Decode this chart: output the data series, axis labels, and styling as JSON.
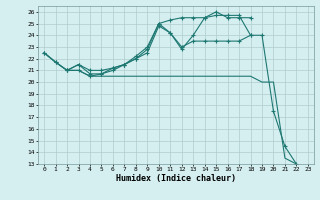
{
  "xlabel": "Humidex (Indice chaleur)",
  "xlim": [
    -0.5,
    23.5
  ],
  "ylim": [
    13,
    26.5
  ],
  "yticks": [
    13,
    14,
    15,
    16,
    17,
    18,
    19,
    20,
    21,
    22,
    23,
    24,
    25,
    26
  ],
  "xticks": [
    0,
    1,
    2,
    3,
    4,
    5,
    6,
    7,
    8,
    9,
    10,
    11,
    12,
    13,
    14,
    15,
    16,
    17,
    18,
    19,
    20,
    21,
    22,
    23
  ],
  "bg_color": "#d5eef0",
  "grid_color": "#b0cccc",
  "line_color": "#1e7872",
  "line1_x": [
    0,
    1,
    2,
    3,
    4,
    5,
    6,
    7,
    8,
    9,
    10,
    11,
    12,
    13,
    14,
    15,
    16,
    17,
    18,
    19,
    20,
    21,
    22
  ],
  "line1_y": [
    22.5,
    21.7,
    21.0,
    21.0,
    20.5,
    20.5,
    20.5,
    20.5,
    20.5,
    20.5,
    20.5,
    20.5,
    20.5,
    20.5,
    20.5,
    20.5,
    20.5,
    20.5,
    20.5,
    20.0,
    20.0,
    13.5,
    13.0
  ],
  "line2_x": [
    0,
    1,
    2,
    3,
    4,
    5,
    6,
    7,
    8,
    9,
    10,
    11,
    12,
    13,
    14,
    15,
    16,
    17,
    18,
    19,
    20,
    21,
    22
  ],
  "line2_y": [
    22.5,
    21.7,
    21.0,
    21.5,
    20.7,
    20.7,
    21.0,
    21.5,
    22.0,
    22.5,
    24.8,
    24.2,
    23.0,
    23.5,
    23.5,
    23.5,
    23.5,
    23.5,
    24.0,
    24.0,
    17.5,
    14.5,
    13.0
  ],
  "line3_x": [
    0,
    1,
    2,
    3,
    4,
    5,
    6,
    7,
    8,
    9,
    10,
    11,
    12,
    13,
    14,
    15,
    16,
    17,
    18
  ],
  "line3_y": [
    22.5,
    21.7,
    21.0,
    21.0,
    20.5,
    20.7,
    21.2,
    21.5,
    22.2,
    23.0,
    25.0,
    24.2,
    22.8,
    24.0,
    25.5,
    26.0,
    25.5,
    25.5,
    25.5
  ],
  "line4_x": [
    2,
    3,
    4,
    5,
    6,
    7,
    8,
    9,
    10,
    11,
    12,
    13,
    14,
    15,
    16,
    17,
    18
  ],
  "line4_y": [
    21.0,
    21.5,
    21.0,
    21.0,
    21.2,
    21.5,
    22.0,
    22.8,
    25.0,
    25.3,
    25.5,
    25.5,
    25.5,
    25.7,
    25.7,
    25.7,
    24.0
  ]
}
